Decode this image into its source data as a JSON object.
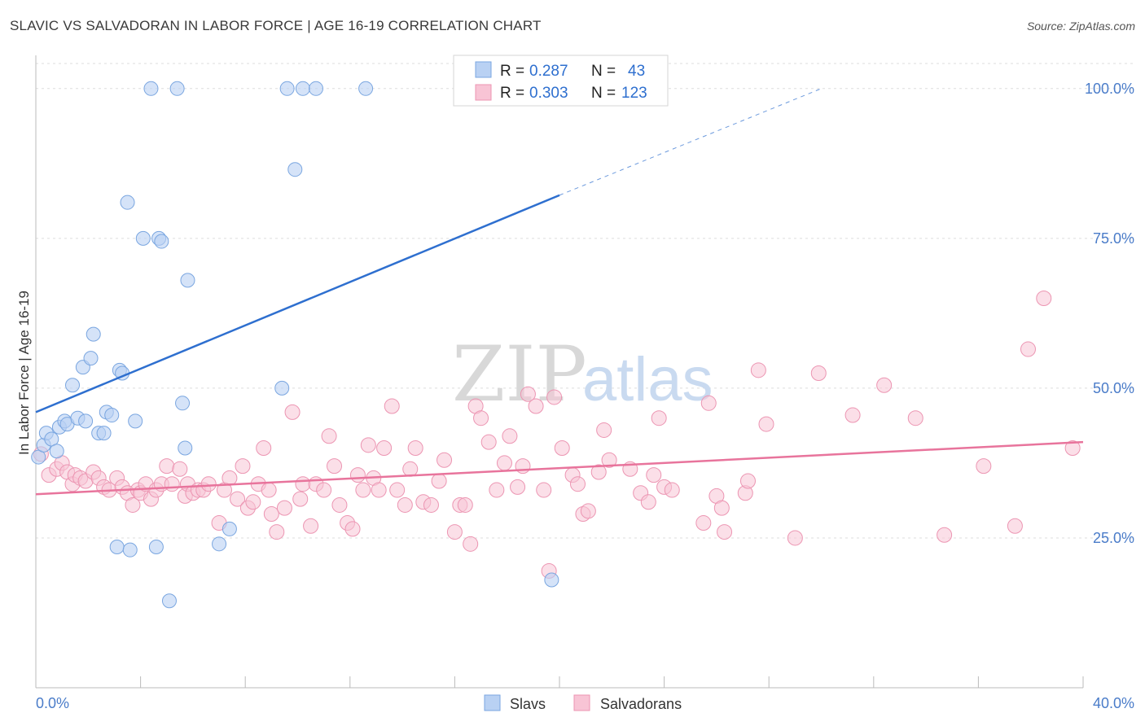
{
  "title": "SLAVIC VS SALVADORAN IN LABOR FORCE | AGE 16-19 CORRELATION CHART",
  "source": "Source: ZipAtlas.com",
  "watermark": {
    "zip": "ZIP",
    "atlas": "atlas"
  },
  "colors": {
    "slavs_fill": "#b9d1f3",
    "slavs_stroke": "#7aa6e0",
    "slavs_line": "#2e6fcf",
    "salv_fill": "#f8c4d5",
    "salv_stroke": "#ec95b2",
    "salv_line": "#e8749c",
    "grid": "#dedede",
    "tick_label": "#4a7cc9"
  },
  "legend": {
    "rows": [
      {
        "r_label": "R =",
        "r_value": "0.287",
        "n_label": "N =",
        "n_value": "43"
      },
      {
        "r_label": "R =",
        "r_value": "0.303",
        "n_label": "N =",
        "n_value": "123"
      }
    ]
  },
  "bottom_legend": [
    "Slavs",
    "Salvadorans"
  ],
  "chart_data": {
    "type": "scatter",
    "title": "SLAVIC VS SALVADORAN IN LABOR FORCE | AGE 16-19 CORRELATION CHART",
    "xlabel": "",
    "ylabel": "In Labor Force | Age 16-19",
    "xlim": [
      0,
      40
    ],
    "ylim": [
      0,
      105
    ],
    "x_tick_labels": [
      "0.0%",
      "40.0%"
    ],
    "y_ticks": [
      25,
      50,
      75,
      100
    ],
    "y_tick_labels": [
      "25.0%",
      "50.0%",
      "75.0%",
      "100.0%"
    ],
    "grid": true,
    "legend_position": "top-center",
    "series": [
      {
        "name": "Slavs",
        "r": 0.287,
        "n": 43,
        "trend": {
          "x0": 0,
          "y0": 46.0,
          "x1": 20,
          "y1": 82.2,
          "dashed_to_x": 30,
          "dashed_to_y": 100
        },
        "points": [
          [
            0.1,
            38.5
          ],
          [
            0.3,
            40.5
          ],
          [
            0.4,
            42.5
          ],
          [
            0.6,
            41.5
          ],
          [
            0.8,
            39.5
          ],
          [
            0.9,
            43.5
          ],
          [
            1.1,
            44.5
          ],
          [
            1.2,
            44
          ],
          [
            1.4,
            50.5
          ],
          [
            1.6,
            45
          ],
          [
            1.8,
            53.5
          ],
          [
            1.9,
            44.5
          ],
          [
            2.1,
            55
          ],
          [
            2.2,
            59
          ],
          [
            2.4,
            42.5
          ],
          [
            2.6,
            42.5
          ],
          [
            2.7,
            46
          ],
          [
            2.9,
            45.5
          ],
          [
            3.1,
            23.5
          ],
          [
            3.2,
            53
          ],
          [
            3.3,
            52.5
          ],
          [
            3.5,
            81
          ],
          [
            3.6,
            23
          ],
          [
            3.8,
            44.5
          ],
          [
            4.1,
            75
          ],
          [
            4.4,
            100
          ],
          [
            4.6,
            23.5
          ],
          [
            4.7,
            75
          ],
          [
            4.8,
            74.5
          ],
          [
            5.1,
            14.5
          ],
          [
            5.4,
            100
          ],
          [
            5.6,
            47.5
          ],
          [
            5.7,
            40
          ],
          [
            5.8,
            68
          ],
          [
            7.0,
            24
          ],
          [
            7.4,
            26.5
          ],
          [
            9.4,
            50
          ],
          [
            9.6,
            100
          ],
          [
            9.9,
            86.5
          ],
          [
            10.2,
            100
          ],
          [
            10.7,
            100
          ],
          [
            12.6,
            100
          ],
          [
            19.7,
            18
          ]
        ]
      },
      {
        "name": "Salvadorans",
        "r": 0.303,
        "n": 123,
        "trend": {
          "x0": 0,
          "y0": 32.3,
          "x1": 40,
          "y1": 41.0
        },
        "points": [
          [
            0.2,
            39
          ],
          [
            0.5,
            35.5
          ],
          [
            0.8,
            36.5
          ],
          [
            1.0,
            37.5
          ],
          [
            1.2,
            36
          ],
          [
            1.4,
            34
          ],
          [
            1.5,
            35.5
          ],
          [
            1.7,
            35
          ],
          [
            1.9,
            34.5
          ],
          [
            2.2,
            36
          ],
          [
            2.4,
            35
          ],
          [
            2.6,
            33.5
          ],
          [
            2.8,
            33
          ],
          [
            3.1,
            35
          ],
          [
            3.3,
            33.5
          ],
          [
            3.5,
            32.5
          ],
          [
            3.7,
            30.5
          ],
          [
            3.9,
            33
          ],
          [
            4.0,
            32.5
          ],
          [
            4.2,
            34
          ],
          [
            4.4,
            31.5
          ],
          [
            4.6,
            33
          ],
          [
            4.8,
            34
          ],
          [
            5.0,
            37
          ],
          [
            5.2,
            34
          ],
          [
            5.5,
            36.5
          ],
          [
            5.7,
            32
          ],
          [
            5.8,
            34
          ],
          [
            6.0,
            32.5
          ],
          [
            6.2,
            33
          ],
          [
            6.4,
            33
          ],
          [
            6.6,
            34
          ],
          [
            7.0,
            27.5
          ],
          [
            7.2,
            33
          ],
          [
            7.4,
            35
          ],
          [
            7.7,
            31.5
          ],
          [
            7.9,
            37
          ],
          [
            8.1,
            30
          ],
          [
            8.3,
            31
          ],
          [
            8.5,
            34
          ],
          [
            8.7,
            40
          ],
          [
            8.9,
            33
          ],
          [
            9.0,
            29
          ],
          [
            9.2,
            26
          ],
          [
            9.5,
            30
          ],
          [
            9.8,
            46
          ],
          [
            10.1,
            31.5
          ],
          [
            10.2,
            34
          ],
          [
            10.5,
            27
          ],
          [
            10.7,
            34
          ],
          [
            11.0,
            33
          ],
          [
            11.2,
            42
          ],
          [
            11.4,
            37
          ],
          [
            11.6,
            30.5
          ],
          [
            11.9,
            27.5
          ],
          [
            12.1,
            26.5
          ],
          [
            12.3,
            35.5
          ],
          [
            12.5,
            33
          ],
          [
            12.7,
            40.5
          ],
          [
            12.9,
            35
          ],
          [
            13.1,
            33
          ],
          [
            13.3,
            40
          ],
          [
            13.6,
            47
          ],
          [
            13.8,
            33
          ],
          [
            14.1,
            30.5
          ],
          [
            14.3,
            36.5
          ],
          [
            14.5,
            40
          ],
          [
            14.8,
            31
          ],
          [
            15.1,
            30.5
          ],
          [
            15.4,
            34.5
          ],
          [
            15.6,
            38
          ],
          [
            16.0,
            26
          ],
          [
            16.2,
            30.5
          ],
          [
            16.4,
            30.5
          ],
          [
            16.6,
            24
          ],
          [
            16.8,
            47
          ],
          [
            17.0,
            45
          ],
          [
            17.3,
            41
          ],
          [
            17.6,
            33
          ],
          [
            17.9,
            37.5
          ],
          [
            18.1,
            42
          ],
          [
            18.4,
            33.5
          ],
          [
            18.6,
            37
          ],
          [
            18.8,
            49
          ],
          [
            19.1,
            47
          ],
          [
            19.4,
            33
          ],
          [
            19.6,
            19.5
          ],
          [
            19.8,
            48.5
          ],
          [
            20.1,
            40
          ],
          [
            20.5,
            35.5
          ],
          [
            20.7,
            34
          ],
          [
            20.9,
            29
          ],
          [
            21.1,
            29.5
          ],
          [
            21.5,
            36
          ],
          [
            21.7,
            43
          ],
          [
            21.9,
            38
          ],
          [
            22.7,
            36.5
          ],
          [
            23.1,
            32.5
          ],
          [
            23.4,
            31
          ],
          [
            23.6,
            35.5
          ],
          [
            23.8,
            45
          ],
          [
            24.0,
            33.5
          ],
          [
            24.3,
            33
          ],
          [
            25.5,
            27.5
          ],
          [
            25.7,
            47.5
          ],
          [
            26.0,
            32
          ],
          [
            26.2,
            30
          ],
          [
            26.3,
            26
          ],
          [
            27.1,
            32.5
          ],
          [
            27.2,
            34.5
          ],
          [
            27.6,
            53
          ],
          [
            27.9,
            44
          ],
          [
            29.0,
            25
          ],
          [
            29.9,
            52.5
          ],
          [
            31.2,
            45.5
          ],
          [
            32.4,
            50.5
          ],
          [
            33.6,
            45
          ],
          [
            34.7,
            25.5
          ],
          [
            36.2,
            37
          ],
          [
            37.4,
            27
          ],
          [
            37.9,
            56.5
          ],
          [
            38.5,
            65
          ],
          [
            39.6,
            40
          ]
        ]
      }
    ]
  }
}
